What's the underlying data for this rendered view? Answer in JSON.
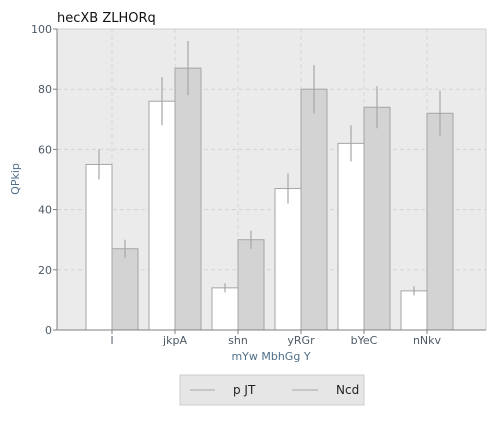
{
  "chart_data": {
    "type": "bar",
    "title": "hecXB ZLHORq",
    "xlabel": "mYw MbhGg Y",
    "ylabel": "QPkip",
    "categories": [
      "l",
      "jkpA",
      "shn",
      "yRGr",
      "bYeC",
      "nNkv"
    ],
    "ylim": [
      0,
      100
    ],
    "yticks": [
      0,
      20,
      40,
      60,
      80,
      100
    ],
    "grid": true,
    "legend_position": "bottom-center",
    "series": [
      {
        "name": "p JT",
        "color": "#ffffff",
        "values": [
          55,
          76,
          14,
          47,
          62,
          13
        ],
        "errors": [
          5,
          8,
          1.5,
          5,
          6,
          1.5
        ]
      },
      {
        "name": "Ncd",
        "color": "#d3d3d3",
        "values": [
          27,
          87,
          30,
          80,
          74,
          72
        ],
        "errors": [
          3,
          9,
          3,
          8,
          7,
          7.5
        ]
      }
    ],
    "colors": {
      "background": "#ebebeb",
      "grid": "#d4d4d4",
      "bar_edge": "#a6a6a6",
      "error_bar": "#a6a6a6",
      "axis_text": "#4d5a66"
    }
  }
}
